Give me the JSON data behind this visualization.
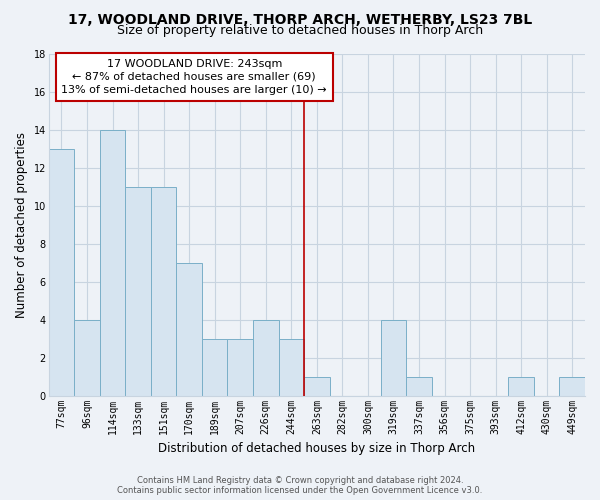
{
  "title": "17, WOODLAND DRIVE, THORP ARCH, WETHERBY, LS23 7BL",
  "subtitle": "Size of property relative to detached houses in Thorp Arch",
  "xlabel": "Distribution of detached houses by size in Thorp Arch",
  "ylabel": "Number of detached properties",
  "bar_labels": [
    "77sqm",
    "96sqm",
    "114sqm",
    "133sqm",
    "151sqm",
    "170sqm",
    "189sqm",
    "207sqm",
    "226sqm",
    "244sqm",
    "263sqm",
    "282sqm",
    "300sqm",
    "319sqm",
    "337sqm",
    "356sqm",
    "375sqm",
    "393sqm",
    "412sqm",
    "430sqm",
    "449sqm"
  ],
  "bar_values": [
    13,
    4,
    14,
    11,
    11,
    7,
    3,
    3,
    4,
    3,
    1,
    0,
    0,
    4,
    1,
    0,
    0,
    0,
    1,
    0,
    1
  ],
  "bar_color": "#d6e4f0",
  "bar_edge_color": "#7aafc8",
  "marker_index": 9,
  "marker_line_color": "#bb0000",
  "annotation_title": "17 WOODLAND DRIVE: 243sqm",
  "annotation_line1": "← 87% of detached houses are smaller (69)",
  "annotation_line2": "13% of semi-detached houses are larger (10) →",
  "annotation_box_color": "#ffffff",
  "annotation_box_edge": "#bb0000",
  "ylim": [
    0,
    18
  ],
  "yticks": [
    0,
    2,
    4,
    6,
    8,
    10,
    12,
    14,
    16,
    18
  ],
  "footer_line1": "Contains HM Land Registry data © Crown copyright and database right 2024.",
  "footer_line2": "Contains public sector information licensed under the Open Government Licence v3.0.",
  "background_color": "#eef2f7",
  "grid_color": "#c8d4e0",
  "title_fontsize": 10,
  "subtitle_fontsize": 9,
  "axis_label_fontsize": 8.5,
  "tick_fontsize": 7,
  "footer_fontsize": 6,
  "ann_fontsize": 8
}
